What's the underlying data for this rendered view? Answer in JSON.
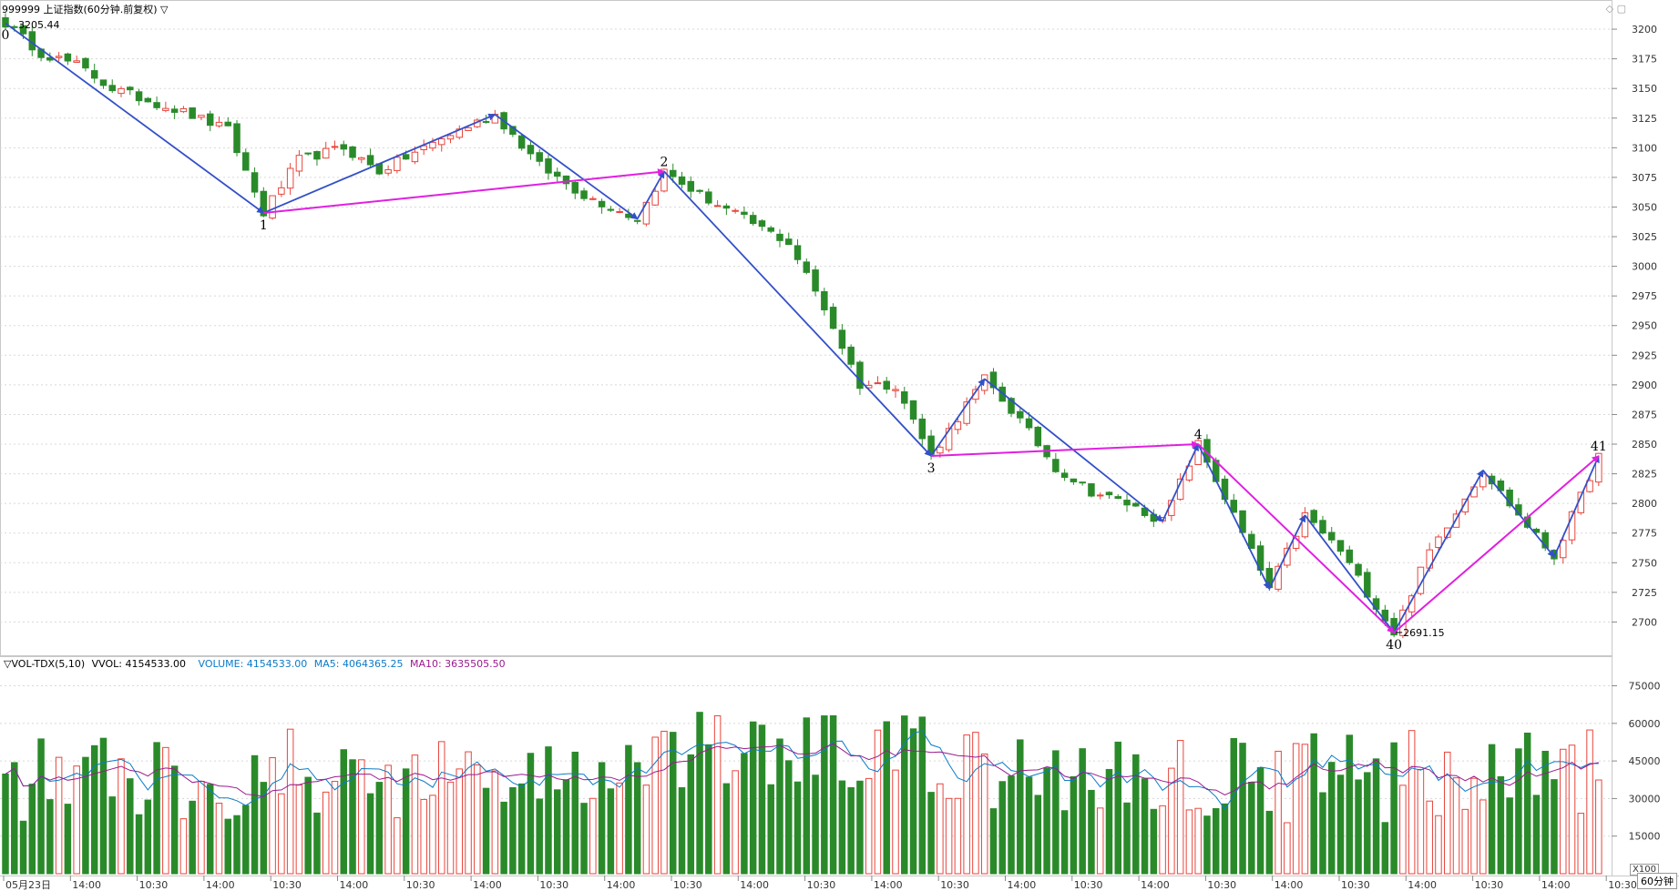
{
  "header": {
    "title": "999999 上证指数(60分钟.前复权) ▽",
    "high_label": "3205.44",
    "low_label": "2691.15"
  },
  "vol_header": {
    "name": "▽VOL-TDX(5,10)",
    "vvol": "VVOL: 4154533.00",
    "volume": "VOLUME: 4154533.00",
    "ma5": "MA5: 4064365.25",
    "ma10": "MA10: 3635505.50"
  },
  "corner": {
    "x100": "X100",
    "period": "60分钟"
  },
  "chart_data": {
    "type": "candlestick",
    "price_axis": {
      "ticks": [
        3200,
        3175,
        3150,
        3125,
        3100,
        3075,
        3050,
        3025,
        3000,
        2975,
        2950,
        2925,
        2900,
        2875,
        2850,
        2825,
        2800,
        2775,
        2750,
        2725,
        2700
      ],
      "labels": [
        "3200",
        "3175",
        "3150",
        "3125",
        "3100",
        "3075",
        "3050",
        "3025",
        "3000",
        "2975",
        "2950",
        "2925",
        "2900",
        "2875",
        "2850",
        "2825",
        "2800",
        "2775",
        "2750",
        "2725",
        "2700"
      ],
      "range": [
        2675,
        3220
      ]
    },
    "volume_axis": {
      "ticks": [
        75000,
        60000,
        45000,
        30000,
        15000
      ],
      "labels": [
        "75000",
        "60000",
        "45000",
        "30000",
        "15000"
      ],
      "range": [
        0,
        85000
      ]
    },
    "time_labels": [
      "05月23日",
      "14:00",
      "10:30",
      "14:00",
      "10:30",
      "14:00",
      "10:30",
      "14:00",
      "10:30",
      "14:00",
      "10:30",
      "14:00",
      "10:30",
      "14:00",
      "10:30",
      "14:00",
      "10:30",
      "14:00",
      "10:30",
      "14:00",
      "10:30",
      "14:00",
      "10:30",
      "14:00",
      "10:30"
    ],
    "wave_labels": [
      "0",
      "1",
      "2",
      "3",
      "4",
      "40",
      "41"
    ],
    "wave_points": [
      {
        "label": "0",
        "i": 0,
        "price": 3205.44
      },
      {
        "label": "1",
        "i": 29,
        "price": 3045
      },
      {
        "label": "2",
        "i": 74,
        "price": 3080
      },
      {
        "label": "3",
        "i": 104,
        "price": 2840
      },
      {
        "label": "4",
        "i": 134,
        "price": 2850
      },
      {
        "label": "40",
        "i": 156,
        "price": 2691.15
      },
      {
        "label": "41",
        "i": 179,
        "price": 2840
      }
    ],
    "blue_waves": [
      [
        [
          0,
          3205
        ],
        [
          29,
          3045
        ],
        [
          55,
          3128
        ],
        [
          71,
          3040
        ],
        [
          74,
          3080
        ],
        [
          104,
          2840
        ],
        [
          110,
          2905
        ],
        [
          130,
          2785
        ],
        [
          134,
          2850
        ],
        [
          142,
          2728
        ],
        [
          146,
          2790
        ],
        [
          156,
          2691
        ],
        [
          166,
          2828
        ],
        [
          174,
          2755
        ],
        [
          179,
          2840
        ]
      ]
    ],
    "magenta_waves": [
      [
        [
          29,
          3045
        ],
        [
          74,
          3080
        ]
      ],
      [
        [
          104,
          2840
        ],
        [
          134,
          2850
        ]
      ],
      [
        [
          134,
          2850
        ],
        [
          156,
          2691
        ],
        [
          179,
          2840
        ]
      ]
    ],
    "anchors": [
      [
        0,
        3205
      ],
      [
        4,
        3180
      ],
      [
        8,
        3170
      ],
      [
        12,
        3150
      ],
      [
        16,
        3140
      ],
      [
        20,
        3130
      ],
      [
        25,
        3115
      ],
      [
        29,
        3045
      ],
      [
        33,
        3090
      ],
      [
        38,
        3100
      ],
      [
        42,
        3080
      ],
      [
        47,
        3100
      ],
      [
        51,
        3115
      ],
      [
        55,
        3128
      ],
      [
        60,
        3085
      ],
      [
        65,
        3060
      ],
      [
        71,
        3040
      ],
      [
        74,
        3080
      ],
      [
        78,
        3060
      ],
      [
        83,
        3040
      ],
      [
        88,
        3020
      ],
      [
        92,
        2965
      ],
      [
        96,
        2900
      ],
      [
        100,
        2900
      ],
      [
        104,
        2840
      ],
      [
        110,
        2905
      ],
      [
        114,
        2870
      ],
      [
        118,
        2830
      ],
      [
        122,
        2810
      ],
      [
        126,
        2800
      ],
      [
        130,
        2785
      ],
      [
        134,
        2850
      ],
      [
        138,
        2790
      ],
      [
        142,
        2728
      ],
      [
        146,
        2790
      ],
      [
        150,
        2760
      ],
      [
        153,
        2725
      ],
      [
        156,
        2691
      ],
      [
        160,
        2760
      ],
      [
        166,
        2828
      ],
      [
        170,
        2790
      ],
      [
        174,
        2755
      ],
      [
        179,
        2840
      ]
    ]
  }
}
